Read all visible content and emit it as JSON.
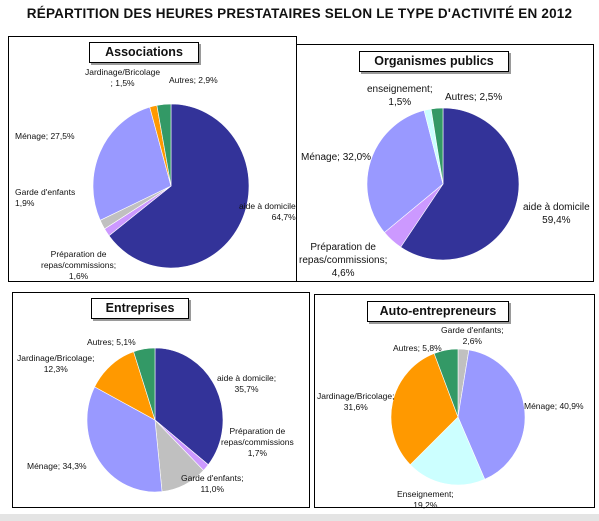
{
  "title": "RÉPARTITION DES HEURES PRESTATAIRES SELON LE TYPE D'ACTIVITÉ EN 2012",
  "panels": [
    {
      "title": "Associations"
    },
    {
      "title": "Organismes  publics"
    },
    {
      "title": "Entreprises"
    },
    {
      "title": "Auto-entrepreneurs"
    }
  ],
  "chart_data": [
    {
      "type": "pie",
      "title": "Associations",
      "slices": [
        {
          "name": "aide à domicile",
          "value": 64.7,
          "label_lines": [
            "aide à domicile",
            "64,7%"
          ],
          "color": "#333399"
        },
        {
          "name": "Préparation de repas/commissions",
          "value": 1.6,
          "label_lines": [
            "Préparation de",
            "repas/commissions;",
            "1,6%"
          ],
          "color": "#cc99ff"
        },
        {
          "name": "Garde d'enfants",
          "value": 1.9,
          "label_lines": [
            "Garde d'enfants",
            "1,9%"
          ],
          "color": "#c0c0c0"
        },
        {
          "name": "Ménage",
          "value": 27.5,
          "label_lines": [
            "Ménage; 27,5%"
          ],
          "color": "#9999ff"
        },
        {
          "name": "Jardinage/Bricolage",
          "value": 1.5,
          "label_lines": [
            "Jardinage/Bricolage",
            "; 1,5%"
          ],
          "color": "#ff9900"
        },
        {
          "name": "Autres",
          "value": 2.9,
          "label_lines": [
            "Autres; 2,9%"
          ],
          "color": "#339966"
        }
      ]
    },
    {
      "type": "pie",
      "title": "Organismes  publics",
      "slices": [
        {
          "name": "aide à domicile",
          "value": 59.4,
          "label_lines": [
            "aide à domicile",
            "59,4%"
          ],
          "color": "#333399"
        },
        {
          "name": "Préparation de repas/commissions",
          "value": 4.6,
          "label_lines": [
            "Préparation de",
            "repas/commissions;",
            "4,6%"
          ],
          "color": "#cc99ff"
        },
        {
          "name": "Ménage",
          "value": 32.0,
          "label_lines": [
            "Ménage; 32,0%"
          ],
          "color": "#9999ff"
        },
        {
          "name": "enseignement",
          "value": 1.5,
          "label_lines": [
            "enseignement;",
            "1,5%"
          ],
          "color": "#ccffff"
        },
        {
          "name": "Autres",
          "value": 2.5,
          "label_lines": [
            "Autres; 2,5%"
          ],
          "color": "#339966"
        }
      ]
    },
    {
      "type": "pie",
      "title": "Entreprises",
      "slices": [
        {
          "name": "aide à domicile",
          "value": 35.7,
          "label_lines": [
            "aide à domicile;",
            "35,7%"
          ],
          "color": "#333399"
        },
        {
          "name": "Préparation de repas/commissions",
          "value": 1.7,
          "label_lines": [
            "Préparation de",
            "repas/commissions",
            "1,7%"
          ],
          "color": "#cc99ff"
        },
        {
          "name": "Garde d'enfants",
          "value": 11.0,
          "label_lines": [
            "Garde d'enfants;",
            "11,0%"
          ],
          "color": "#c0c0c0"
        },
        {
          "name": "Ménage",
          "value": 34.3,
          "label_lines": [
            "Ménage; 34,3%"
          ],
          "color": "#9999ff"
        },
        {
          "name": "Jardinage/Bricolage",
          "value": 12.3,
          "label_lines": [
            "Jardinage/Bricolage;",
            "12,3%"
          ],
          "color": "#ff9900"
        },
        {
          "name": "Autres",
          "value": 5.1,
          "label_lines": [
            "Autres; 5,1%"
          ],
          "color": "#339966"
        }
      ]
    },
    {
      "type": "pie",
      "title": "Auto-entrepreneurs",
      "slices": [
        {
          "name": "Garde d'enfants",
          "value": 2.6,
          "label_lines": [
            "Garde d'enfants;",
            "2,6%"
          ],
          "color": "#c0c0c0"
        },
        {
          "name": "Ménage",
          "value": 40.9,
          "label_lines": [
            "Ménage; 40,9%"
          ],
          "color": "#9999ff"
        },
        {
          "name": "Enseignement",
          "value": 19.2,
          "label_lines": [
            "Enseignement;",
            "19,2%"
          ],
          "color": "#ccffff"
        },
        {
          "name": "Jardinage/Bricolage",
          "value": 31.6,
          "label_lines": [
            "Jardinage/Bricolage;",
            "31,6%"
          ],
          "color": "#ff9900"
        },
        {
          "name": "Autres",
          "value": 5.8,
          "label_lines": [
            "Autres; 5,8%"
          ],
          "color": "#339966"
        }
      ]
    }
  ]
}
